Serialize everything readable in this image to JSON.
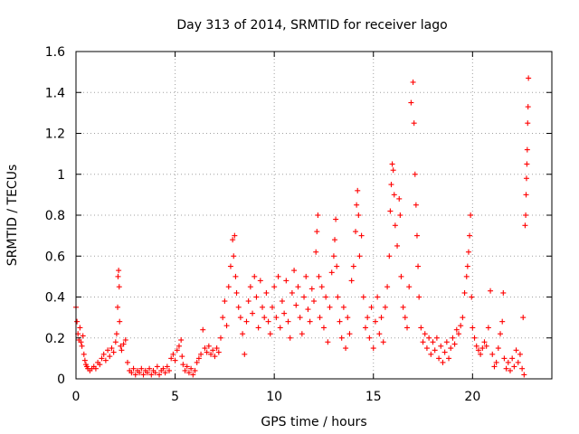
{
  "chart_data": {
    "type": "scatter",
    "title": "Day 313 of 2014, SRMTID for receiver lago",
    "xlabel": "GPS time / hours",
    "ylabel": "SRMTID / TECUs",
    "xlim": [
      0,
      24
    ],
    "ylim": [
      0,
      1.6
    ],
    "xticks": [
      0,
      5,
      10,
      15,
      20
    ],
    "yticks": [
      0,
      0.2,
      0.4,
      0.6,
      0.8,
      1,
      1.2,
      1.4,
      1.6
    ],
    "xtick_labels": [
      "0",
      "5",
      "10",
      "15",
      "20"
    ],
    "ytick_labels": [
      "0",
      "0.2",
      "0.4",
      "0.6",
      "0.8",
      "1",
      "1.2",
      "1.4",
      "1.6"
    ],
    "marker": "+",
    "color": "#ff0000",
    "grid": true,
    "series": [
      {
        "name": "SRMTID",
        "points": [
          [
            0.0,
            0.35
          ],
          [
            0.05,
            0.28
          ],
          [
            0.1,
            0.22
          ],
          [
            0.15,
            0.19
          ],
          [
            0.2,
            0.25
          ],
          [
            0.25,
            0.18
          ],
          [
            0.3,
            0.16
          ],
          [
            0.35,
            0.21
          ],
          [
            0.4,
            0.12
          ],
          [
            0.45,
            0.09
          ],
          [
            0.5,
            0.07
          ],
          [
            0.55,
            0.06
          ],
          [
            0.6,
            0.05
          ],
          [
            0.7,
            0.04
          ],
          [
            0.8,
            0.05
          ],
          [
            0.9,
            0.06
          ],
          [
            1.0,
            0.05
          ],
          [
            1.1,
            0.08
          ],
          [
            1.2,
            0.07
          ],
          [
            1.3,
            0.1
          ],
          [
            1.4,
            0.12
          ],
          [
            1.5,
            0.09
          ],
          [
            1.6,
            0.14
          ],
          [
            1.7,
            0.11
          ],
          [
            1.8,
            0.15
          ],
          [
            1.9,
            0.13
          ],
          [
            2.0,
            0.18
          ],
          [
            2.05,
            0.22
          ],
          [
            2.1,
            0.35
          ],
          [
            2.12,
            0.5
          ],
          [
            2.15,
            0.53
          ],
          [
            2.18,
            0.45
          ],
          [
            2.2,
            0.28
          ],
          [
            2.25,
            0.16
          ],
          [
            2.3,
            0.14
          ],
          [
            2.4,
            0.17
          ],
          [
            2.5,
            0.19
          ],
          [
            2.6,
            0.08
          ],
          [
            2.7,
            0.04
          ],
          [
            2.8,
            0.03
          ],
          [
            2.9,
            0.05
          ],
          [
            3.0,
            0.02
          ],
          [
            3.1,
            0.04
          ],
          [
            3.2,
            0.03
          ],
          [
            3.3,
            0.05
          ],
          [
            3.4,
            0.02
          ],
          [
            3.5,
            0.04
          ],
          [
            3.6,
            0.03
          ],
          [
            3.7,
            0.05
          ],
          [
            3.8,
            0.02
          ],
          [
            3.9,
            0.04
          ],
          [
            4.0,
            0.03
          ],
          [
            4.1,
            0.06
          ],
          [
            4.2,
            0.02
          ],
          [
            4.3,
            0.04
          ],
          [
            4.4,
            0.05
          ],
          [
            4.5,
            0.03
          ],
          [
            4.6,
            0.06
          ],
          [
            4.7,
            0.04
          ],
          [
            4.8,
            0.1
          ],
          [
            4.9,
            0.12
          ],
          [
            5.0,
            0.09
          ],
          [
            5.1,
            0.14
          ],
          [
            5.2,
            0.16
          ],
          [
            5.3,
            0.19
          ],
          [
            5.35,
            0.11
          ],
          [
            5.4,
            0.07
          ],
          [
            5.5,
            0.04
          ],
          [
            5.6,
            0.06
          ],
          [
            5.7,
            0.03
          ],
          [
            5.8,
            0.05
          ],
          [
            5.9,
            0.02
          ],
          [
            6.0,
            0.04
          ],
          [
            6.1,
            0.08
          ],
          [
            6.2,
            0.1
          ],
          [
            6.3,
            0.12
          ],
          [
            6.4,
            0.24
          ],
          [
            6.5,
            0.15
          ],
          [
            6.6,
            0.13
          ],
          [
            6.7,
            0.16
          ],
          [
            6.8,
            0.12
          ],
          [
            6.9,
            0.14
          ],
          [
            7.0,
            0.11
          ],
          [
            7.1,
            0.15
          ],
          [
            7.2,
            0.13
          ],
          [
            7.3,
            0.2
          ],
          [
            7.4,
            0.3
          ],
          [
            7.5,
            0.38
          ],
          [
            7.6,
            0.26
          ],
          [
            7.7,
            0.45
          ],
          [
            7.8,
            0.55
          ],
          [
            7.9,
            0.68
          ],
          [
            7.95,
            0.6
          ],
          [
            8.0,
            0.7
          ],
          [
            8.05,
            0.5
          ],
          [
            8.1,
            0.42
          ],
          [
            8.2,
            0.35
          ],
          [
            8.3,
            0.3
          ],
          [
            8.4,
            0.22
          ],
          [
            8.5,
            0.12
          ],
          [
            8.6,
            0.28
          ],
          [
            8.7,
            0.38
          ],
          [
            8.8,
            0.45
          ],
          [
            8.9,
            0.32
          ],
          [
            9.0,
            0.5
          ],
          [
            9.1,
            0.4
          ],
          [
            9.2,
            0.25
          ],
          [
            9.3,
            0.48
          ],
          [
            9.4,
            0.35
          ],
          [
            9.5,
            0.3
          ],
          [
            9.6,
            0.42
          ],
          [
            9.7,
            0.28
          ],
          [
            9.8,
            0.22
          ],
          [
            9.9,
            0.35
          ],
          [
            10.0,
            0.45
          ],
          [
            10.1,
            0.3
          ],
          [
            10.2,
            0.5
          ],
          [
            10.3,
            0.25
          ],
          [
            10.4,
            0.38
          ],
          [
            10.5,
            0.32
          ],
          [
            10.6,
            0.48
          ],
          [
            10.7,
            0.28
          ],
          [
            10.8,
            0.2
          ],
          [
            10.9,
            0.42
          ],
          [
            11.0,
            0.53
          ],
          [
            11.1,
            0.36
          ],
          [
            11.2,
            0.45
          ],
          [
            11.3,
            0.3
          ],
          [
            11.4,
            0.22
          ],
          [
            11.5,
            0.4
          ],
          [
            11.6,
            0.5
          ],
          [
            11.7,
            0.34
          ],
          [
            11.8,
            0.28
          ],
          [
            11.9,
            0.44
          ],
          [
            12.0,
            0.38
          ],
          [
            12.1,
            0.62
          ],
          [
            12.15,
            0.72
          ],
          [
            12.2,
            0.8
          ],
          [
            12.25,
            0.5
          ],
          [
            12.3,
            0.3
          ],
          [
            12.4,
            0.45
          ],
          [
            12.5,
            0.25
          ],
          [
            12.6,
            0.4
          ],
          [
            12.7,
            0.18
          ],
          [
            12.8,
            0.35
          ],
          [
            12.9,
            0.52
          ],
          [
            13.0,
            0.6
          ],
          [
            13.05,
            0.68
          ],
          [
            13.1,
            0.78
          ],
          [
            13.15,
            0.55
          ],
          [
            13.2,
            0.4
          ],
          [
            13.3,
            0.28
          ],
          [
            13.4,
            0.2
          ],
          [
            13.5,
            0.35
          ],
          [
            13.6,
            0.15
          ],
          [
            13.7,
            0.3
          ],
          [
            13.8,
            0.22
          ],
          [
            13.9,
            0.48
          ],
          [
            14.0,
            0.55
          ],
          [
            14.1,
            0.72
          ],
          [
            14.15,
            0.85
          ],
          [
            14.2,
            0.92
          ],
          [
            14.25,
            0.8
          ],
          [
            14.3,
            0.6
          ],
          [
            14.4,
            0.7
          ],
          [
            14.5,
            0.4
          ],
          [
            14.6,
            0.25
          ],
          [
            14.7,
            0.3
          ],
          [
            14.8,
            0.2
          ],
          [
            14.9,
            0.35
          ],
          [
            15.0,
            0.15
          ],
          [
            15.1,
            0.28
          ],
          [
            15.2,
            0.4
          ],
          [
            15.3,
            0.22
          ],
          [
            15.4,
            0.3
          ],
          [
            15.5,
            0.18
          ],
          [
            15.6,
            0.35
          ],
          [
            15.7,
            0.45
          ],
          [
            15.8,
            0.6
          ],
          [
            15.85,
            0.82
          ],
          [
            15.9,
            0.95
          ],
          [
            15.95,
            1.05
          ],
          [
            16.0,
            1.02
          ],
          [
            16.05,
            0.9
          ],
          [
            16.1,
            0.75
          ],
          [
            16.2,
            0.65
          ],
          [
            16.3,
            0.88
          ],
          [
            16.35,
            0.8
          ],
          [
            16.4,
            0.5
          ],
          [
            16.5,
            0.35
          ],
          [
            16.6,
            0.3
          ],
          [
            16.7,
            0.25
          ],
          [
            16.8,
            0.45
          ],
          [
            16.9,
            1.35
          ],
          [
            17.0,
            1.45
          ],
          [
            17.05,
            1.25
          ],
          [
            17.1,
            1.0
          ],
          [
            17.15,
            0.85
          ],
          [
            17.2,
            0.7
          ],
          [
            17.25,
            0.55
          ],
          [
            17.3,
            0.4
          ],
          [
            17.4,
            0.25
          ],
          [
            17.5,
            0.18
          ],
          [
            17.6,
            0.22
          ],
          [
            17.7,
            0.15
          ],
          [
            17.8,
            0.2
          ],
          [
            17.9,
            0.12
          ],
          [
            18.0,
            0.18
          ],
          [
            18.1,
            0.14
          ],
          [
            18.2,
            0.2
          ],
          [
            18.3,
            0.1
          ],
          [
            18.4,
            0.16
          ],
          [
            18.5,
            0.08
          ],
          [
            18.6,
            0.13
          ],
          [
            18.7,
            0.18
          ],
          [
            18.8,
            0.1
          ],
          [
            18.9,
            0.15
          ],
          [
            19.0,
            0.2
          ],
          [
            19.1,
            0.17
          ],
          [
            19.2,
            0.24
          ],
          [
            19.3,
            0.22
          ],
          [
            19.4,
            0.26
          ],
          [
            19.5,
            0.3
          ],
          [
            19.6,
            0.42
          ],
          [
            19.7,
            0.5
          ],
          [
            19.75,
            0.55
          ],
          [
            19.8,
            0.62
          ],
          [
            19.85,
            0.7
          ],
          [
            19.9,
            0.8
          ],
          [
            19.95,
            0.4
          ],
          [
            20.0,
            0.25
          ],
          [
            20.1,
            0.2
          ],
          [
            20.2,
            0.16
          ],
          [
            20.3,
            0.14
          ],
          [
            20.4,
            0.12
          ],
          [
            20.5,
            0.15
          ],
          [
            20.6,
            0.18
          ],
          [
            20.7,
            0.16
          ],
          [
            20.8,
            0.25
          ],
          [
            20.9,
            0.43
          ],
          [
            21.0,
            0.12
          ],
          [
            21.1,
            0.06
          ],
          [
            21.2,
            0.08
          ],
          [
            21.3,
            0.15
          ],
          [
            21.4,
            0.22
          ],
          [
            21.5,
            0.28
          ],
          [
            21.55,
            0.42
          ],
          [
            21.6,
            0.1
          ],
          [
            21.7,
            0.05
          ],
          [
            21.8,
            0.08
          ],
          [
            21.9,
            0.04
          ],
          [
            22.0,
            0.1
          ],
          [
            22.1,
            0.06
          ],
          [
            22.2,
            0.14
          ],
          [
            22.3,
            0.08
          ],
          [
            22.4,
            0.12
          ],
          [
            22.5,
            0.05
          ],
          [
            22.55,
            0.3
          ],
          [
            22.6,
            0.02
          ],
          [
            22.65,
            0.75
          ],
          [
            22.68,
            0.8
          ],
          [
            22.7,
            0.9
          ],
          [
            22.72,
            0.98
          ],
          [
            22.74,
            1.05
          ],
          [
            22.76,
            1.12
          ],
          [
            22.78,
            1.25
          ],
          [
            22.8,
            1.33
          ],
          [
            22.82,
            1.47
          ]
        ]
      }
    ]
  }
}
